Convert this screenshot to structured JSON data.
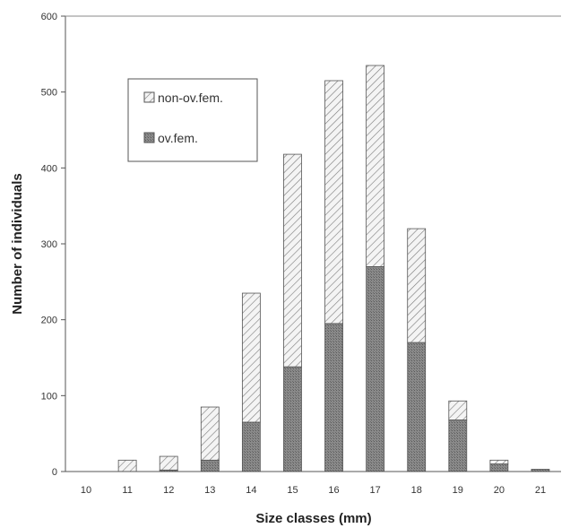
{
  "chart_data": {
    "type": "bar",
    "stacked": true,
    "title": "",
    "xlabel": "Size classes (mm)",
    "ylabel": "Number of individuals",
    "categories": [
      "10",
      "11",
      "12",
      "13",
      "14",
      "15",
      "16",
      "17",
      "18",
      "19",
      "20",
      "21"
    ],
    "ylim": [
      0,
      600
    ],
    "yticks": [
      "0",
      "100",
      "200",
      "300",
      "400",
      "500",
      "600"
    ],
    "grid": false,
    "legend_position": "top-left",
    "series": [
      {
        "name": "ov.fem.",
        "values": [
          0,
          0,
          2,
          15,
          65,
          138,
          195,
          270,
          170,
          68,
          10,
          3
        ],
        "color": "#8f8f8f",
        "pattern": "dark-dotted"
      },
      {
        "name": "non-ov.fem.",
        "values": [
          0,
          15,
          18,
          70,
          170,
          280,
          320,
          265,
          150,
          25,
          5,
          0
        ],
        "color": "#f2f2f2",
        "pattern": "diagonal-hatch"
      }
    ],
    "legend": {
      "items": [
        "non-ov.fem.",
        "ov.fem."
      ]
    }
  }
}
